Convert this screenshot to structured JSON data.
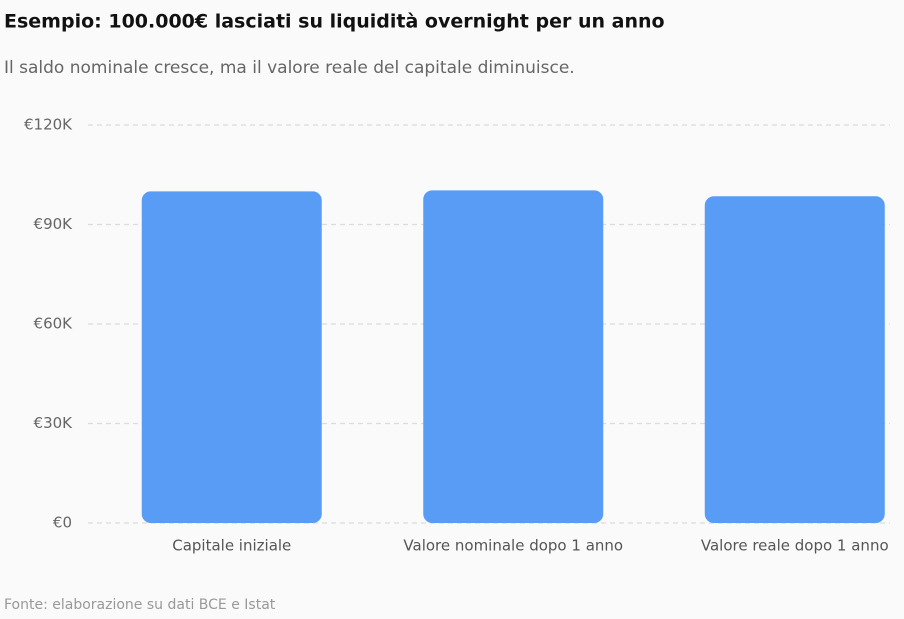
{
  "chart_data": {
    "type": "bar",
    "title": "Esempio: 100.000€ lasciati su liquidità overnight per un anno",
    "subtitle": "Il saldo nominale cresce, ma il valore reale del capitale diminuisce.",
    "source": "Fonte: elaborazione su dati BCE e Istat",
    "categories": [
      "Capitale iniziale",
      "Valore nominale dopo 1 anno",
      "Valore reale dopo 1 anno"
    ],
    "values": [
      100000,
      100300,
      98500
    ],
    "color": "#589cf6",
    "ylim": [
      0,
      120000
    ],
    "yticks": [
      {
        "value": 0,
        "label": "€0"
      },
      {
        "value": 30000,
        "label": "€30K"
      },
      {
        "value": 60000,
        "label": "€60K"
      },
      {
        "value": 90000,
        "label": "€90K"
      },
      {
        "value": 120000,
        "label": "€120K"
      }
    ],
    "grid": true
  }
}
